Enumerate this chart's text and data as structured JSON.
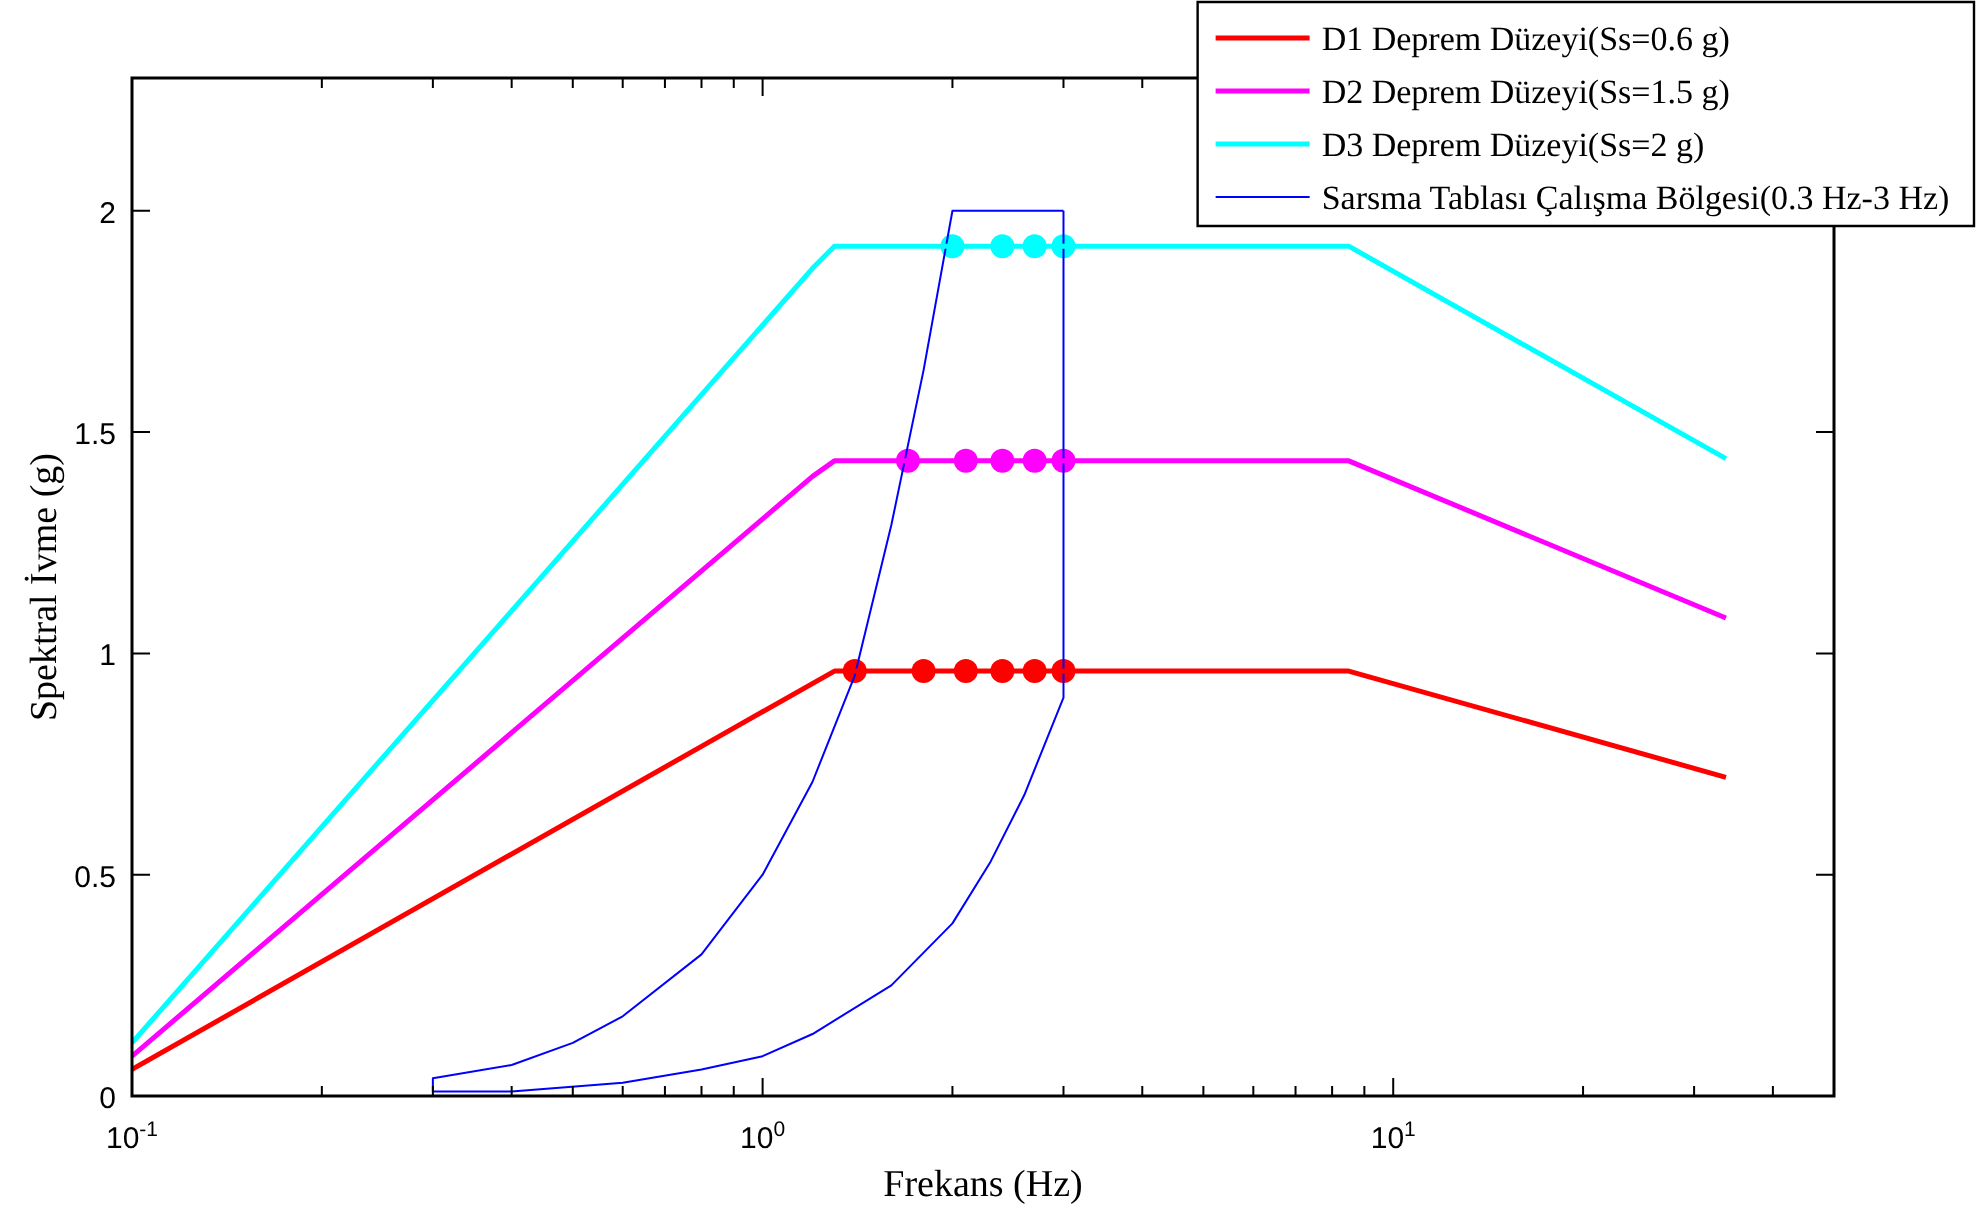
{
  "chart_data": {
    "type": "line",
    "xlabel": "Frekans (Hz)",
    "ylabel": "Spektral İvme (g)",
    "log": "x",
    "grid": false,
    "legend": "top right",
    "marker": "none",
    "line_style": "solid",
    "xlim": [
      0.1,
      50
    ],
    "ylim": [
      0,
      2.3
    ],
    "xticks": [
      {
        "value": 0.1,
        "label": "10$^{-1}$"
      },
      {
        "value": 0.2,
        "label": null
      },
      {
        "value": 0.3,
        "label": null
      },
      {
        "value": 0.4,
        "label": null
      },
      {
        "value": 0.5,
        "label": null
      },
      {
        "value": 0.6,
        "label": null
      },
      {
        "value": 0.7,
        "label": null
      },
      {
        "value": 0.8,
        "label": null
      },
      {
        "value": 0.9,
        "label": null
      },
      {
        "value": 1,
        "label": "10$^{0}$"
      },
      {
        "value": 2,
        "label": null
      },
      {
        "value": 3,
        "label": null
      },
      {
        "value": 4,
        "label": null
      },
      {
        "value": 5,
        "label": null
      },
      {
        "value": 6,
        "label": null
      },
      {
        "value": 7,
        "label": null
      },
      {
        "value": 8,
        "label": null
      },
      {
        "value": 9,
        "label": null
      },
      {
        "value": 10,
        "label": "10$^{1}$"
      },
      {
        "value": 20,
        "label": null
      },
      {
        "value": 30,
        "label": null
      },
      {
        "value": 40,
        "label": null
      }
    ],
    "yticks": [
      0,
      0.5,
      1,
      1.5,
      2
    ],
    "series": [
      {
        "name": "D1 Deprem Düzeyi(Ss=0.6 g)",
        "color": "#ff0000",
        "x": [
          0.1,
          0.8,
          1.3,
          8.5,
          33.7
        ],
        "values": [
          0.06,
          0.79,
          0.96,
          0.96,
          0.72
        ]
      },
      {
        "name": "D2 Deprem Düzeyi(Ss=1.5 g)",
        "color": "#ff00ff",
        "x": [
          0.1,
          1.2,
          1.3,
          8.5,
          33.7
        ],
        "values": [
          0.09,
          1.4,
          1.435,
          1.435,
          1.08
        ]
      },
      {
        "name": "D3 Deprem Düzeyi(Ss=2 g)",
        "color": "#00ffff",
        "x": [
          0.1,
          1.2,
          1.3,
          8.5,
          33.7
        ],
        "values": [
          0.12,
          1.87,
          1.92,
          1.92,
          1.44
        ]
      },
      {
        "name": "Sarsma Tablası Çalışma Bölgesi(0.3 Hz-3 Hz)",
        "color": "#0000ff",
        "x": [
          0.3,
          0.4,
          0.5,
          0.6,
          0.8,
          1.0,
          1.2,
          1.4,
          1.6,
          1.8,
          2.0,
          3.0
        ],
        "values": [
          0.04,
          0.07,
          0.12,
          0.18,
          0.32,
          0.5,
          0.71,
          0.95,
          1.29,
          1.64,
          2.0,
          2.0
        ]
      },
      {
        "color": "#0000ff",
        "x": [
          0.3,
          0.3,
          0.4,
          0.6,
          0.8,
          1.0,
          1.2,
          1.6,
          2.0,
          2.3,
          2.6,
          3.0,
          3.0
        ],
        "values": [
          0.04,
          0.01,
          0.01,
          0.03,
          0.06,
          0.09,
          0.14,
          0.25,
          0.39,
          0.53,
          0.68,
          0.9,
          2.0
        ]
      },
      {
        "type": "scatter",
        "marker": "circle",
        "color": "#ff0000",
        "x": [
          1.4,
          1.8,
          2.1,
          2.4,
          2.7,
          3.0
        ],
        "values": [
          0.96,
          0.96,
          0.96,
          0.96,
          0.96,
          0.96
        ]
      },
      {
        "type": "scatter",
        "marker": "circle",
        "color": "#ff00ff",
        "x": [
          1.7,
          2.1,
          2.4,
          2.7,
          3.0
        ],
        "values": [
          1.435,
          1.435,
          1.435,
          1.435,
          1.435
        ]
      },
      {
        "type": "scatter",
        "marker": "circle",
        "color": "#00ffff",
        "x": [
          2.0,
          2.4,
          2.7,
          3.0
        ],
        "values": [
          1.92,
          1.92,
          1.92,
          1.92
        ]
      }
    ]
  }
}
